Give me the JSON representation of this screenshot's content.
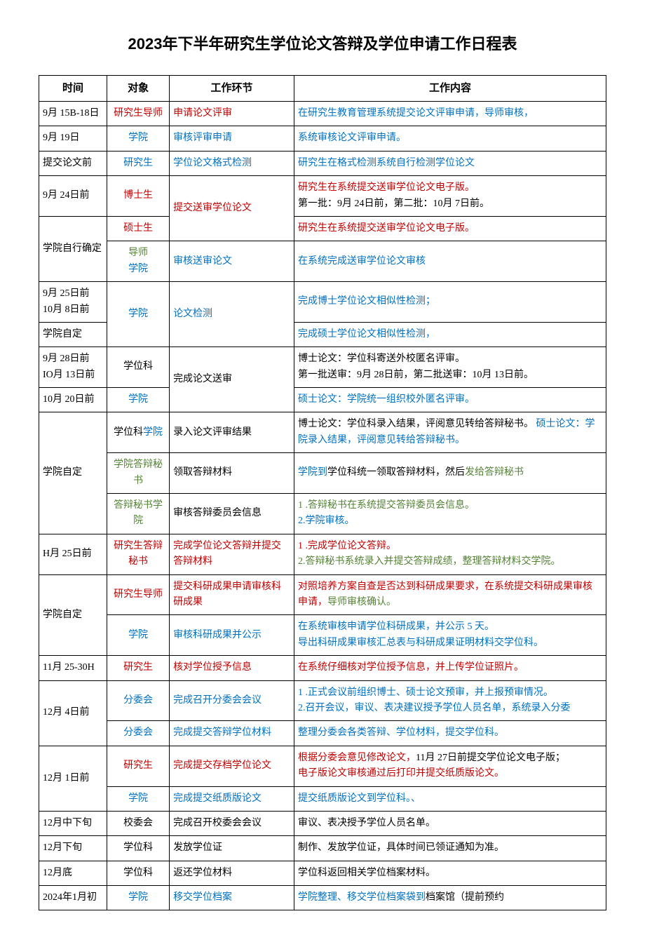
{
  "title": "2023年下半年研究生学位论文答辩及学位申请工作日程表",
  "headers": {
    "time": "时间",
    "target": "对象",
    "step": "工作环节",
    "content": "工作内容"
  },
  "rows": {
    "r1": {
      "time": "9月 15B-18日",
      "target": "研究生导师",
      "step": "申请论文评审",
      "content": "在研究生教育管理系统提交论文评审申请，导师审核，"
    },
    "r2": {
      "time": "9月 19日",
      "target": "学院",
      "step": "审核评审申请",
      "content": "系统审核论文评审申请。"
    },
    "r3": {
      "time": "提交论文前",
      "target": "研究生",
      "step": "学位论文格式检测",
      "content": "研究生在格式检测系统自行检测学位论文"
    },
    "r4": {
      "time": "9月 24日前",
      "target": "博士生",
      "step": "提交送审学位论文",
      "content_a": "研究生在系统提交送审学位论文电子版。",
      "content_b": "第一批：9月 24日前，第二批：10月 7日前。"
    },
    "r5": {
      "time": "学院自行确定",
      "target1": "硕士生",
      "content1": "研究生在系统提交送审学位论文电子版。",
      "target2a": "导师",
      "target2b": "学院",
      "step2": "审核送审论文",
      "content2": "在系统完成送审学位论文审核"
    },
    "r6": {
      "time1": "9月 25日前",
      "time2": "10月 8日前",
      "target": "学院",
      "step": "论文检测",
      "content": "完成博士学位论文相似性检测；"
    },
    "r7": {
      "time": "学院自定",
      "content": "完成硕士学位论文相似性检测，"
    },
    "r8": {
      "time1": "9月 28日前",
      "time2": "IO月 13日前",
      "target": "学位科",
      "step": "完成论文送审",
      "content_a": "博士论文：学位科寄送外校匿名评审。",
      "content_b": "第一批送审：9月 28日前，第二批送审：10月 13日前。"
    },
    "r9": {
      "time": "10月 20日前",
      "target": "学院",
      "content": "硕士论文：学院统一组织校外匿名评审。"
    },
    "r10": {
      "time": "学院自定",
      "target1": "学位科",
      "target1b": "学院",
      "step1": "录入论文评审结果",
      "content1_a": "博士论文：学位科录入结果，评阅意见转给答辩秘书。",
      "content1_b": "硕士论文：学院录入结果，评阅意见转给答辩秘书。",
      "target2": "学院答辩秘书",
      "step2": "领取答辩材料",
      "content2_a": "学院到",
      "content2_b": "学位科统一领取答辩材料，然后",
      "content2_c": "发给答辩秘书",
      "target3": "答辩秘书学院",
      "step3": "审核答辩委员会信息",
      "content3_a": "1      .答辩秘书在系统提交答辩委员会信息。",
      "content3_b": "2.学院审核。"
    },
    "r11": {
      "time": "H月 25日前",
      "target": "研究生答辩秘书",
      "step": "完成学位论文答辩并提交答辩材料",
      "content_a": "1      .完成学位论文答辩。",
      "content_b": "2.答辩秘书系统录入并提交答辩成绩，整理答辩材料交学院。"
    },
    "r12": {
      "time": "学院自定",
      "target1": "研究生导师",
      "step1": "提交科研成果申请审核科研成果",
      "content1_a": "对照培养方案自查是否达到科研成果要求，在系统提交科研成果审核申请，",
      "content1_b": "导师审核确认。",
      "target2": "学院",
      "step2": "审核科研成果并公示",
      "content2_a": "在系统审核申请学位科研成果，并公示 5 天。",
      "content2_b": "导出科研成果审核汇总表与科研成果证明材料交学位科。"
    },
    "r13": {
      "time": "11月 25-30H",
      "target": "研究生",
      "step": "核对学位授予信息",
      "content": "在系统仔细核对学位授予信息，并上传学位证照片。"
    },
    "r14": {
      "time": "12月 4日前",
      "target1": "分委会",
      "step1": "完成召开分委会会议",
      "content1_a": "1      .正式会议前组织博士、硕士论文预审，并上报预审情况。",
      "content1_b": "2.召开会议，审议、表决建议授予学位人员名单，系统录入分委",
      "target2": "分委会",
      "step2": "完成提交答辩学位材料",
      "content2": "整理分委会各类答辩、学位材料，提交学位科。"
    },
    "r15": {
      "time": "12月 1日前",
      "target1": "研究生",
      "step1": "完成提交存档学位论文",
      "content1_a": "根据分委会意见修改论文，",
      "content1_b": "11月 27日前提交学位论文电子版；",
      "content1_c": "电子版论文审核通过后打印并提交纸质版论文。",
      "target2": "学院",
      "step2": "完成提交纸质版论文",
      "content2": "提交纸质版论文到学位科。、"
    },
    "r16": {
      "time": "12月中下旬",
      "target": "校委会",
      "step": "完成召开校委会会议",
      "content": "审议、表决授予学位人员名单。"
    },
    "r17": {
      "time": "12月下旬",
      "target": "学位科",
      "step": "发放学位证",
      "content": "制作、发放学位证，具体时间已领证通知为准。"
    },
    "r18": {
      "time": "12月底",
      "target": "学位科",
      "step": "返还学位材料",
      "content": "学位科返回相关学位档案材料。"
    },
    "r19": {
      "time": "2024年1月初",
      "target": "学院",
      "step": "移交学位档案",
      "content_a": "学院整理、移交学位档案袋到",
      "content_b": "档案馆（提前预约"
    }
  }
}
